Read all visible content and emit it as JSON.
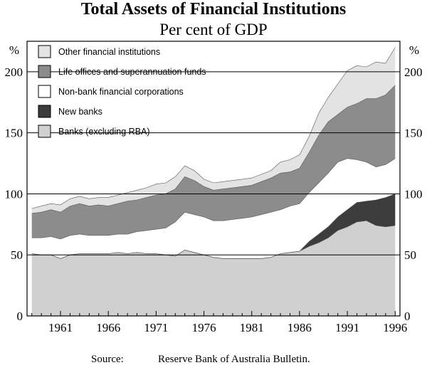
{
  "chart_data": {
    "type": "area",
    "stacked": true,
    "title": "Total Assets of Financial Institutions",
    "subtitle": "Per cent of GDP",
    "ylabel_left": "%",
    "ylabel_right": "%",
    "ylim": [
      0,
      225
    ],
    "yticks": [
      0,
      50,
      100,
      150,
      200
    ],
    "xlim": [
      1957.5,
      1996.5
    ],
    "xticks": [
      1961,
      1966,
      1971,
      1976,
      1981,
      1986,
      1991,
      1996
    ],
    "gridlines": [
      50,
      100,
      150,
      200
    ],
    "legend_position": "top-left",
    "x": [
      1958,
      1959,
      1960,
      1961,
      1962,
      1963,
      1964,
      1965,
      1966,
      1967,
      1968,
      1969,
      1970,
      1971,
      1972,
      1973,
      1974,
      1975,
      1976,
      1977,
      1978,
      1979,
      1980,
      1981,
      1982,
      1983,
      1984,
      1985,
      1986,
      1987,
      1988,
      1989,
      1990,
      1991,
      1992,
      1993,
      1994,
      1995,
      1996
    ],
    "series": [
      {
        "name": "Banks (excluding RBA)",
        "color": "#d0d0d0",
        "values": [
          51,
          50,
          50,
          47,
          50,
          51,
          51,
          51,
          51,
          52,
          51,
          52,
          51,
          51,
          50,
          49,
          54,
          52,
          50,
          48,
          47,
          47,
          47,
          47,
          47,
          48,
          51,
          52,
          53,
          57,
          60,
          64,
          70,
          73,
          77,
          78,
          74,
          73,
          74
        ]
      },
      {
        "name": "New banks",
        "color": "#3c3c3c",
        "values": [
          0,
          0,
          0,
          0,
          0,
          0,
          0,
          0,
          0,
          0,
          0,
          0,
          0,
          0,
          0,
          0,
          0,
          0,
          0,
          0,
          0,
          0,
          0,
          0,
          0,
          0,
          0,
          0,
          0,
          4,
          7,
          9,
          11,
          14,
          16,
          16,
          21,
          24,
          26
        ]
      },
      {
        "name": "Non-bank financial corporations",
        "color": "#ffffff",
        "values": [
          13,
          14,
          15,
          16,
          16,
          16,
          15,
          15,
          15,
          15,
          16,
          17,
          19,
          20,
          22,
          28,
          31,
          31,
          31,
          30,
          31,
          32,
          33,
          34,
          36,
          37,
          36,
          38,
          39,
          40,
          42,
          44,
          45,
          42,
          35,
          32,
          27,
          27,
          29
        ]
      },
      {
        "name": "Life offices and superannuation funds",
        "color": "#8c8c8c",
        "values": [
          20,
          21,
          22,
          22,
          24,
          25,
          24,
          25,
          24,
          25,
          27,
          26,
          27,
          28,
          28,
          27,
          29,
          28,
          25,
          25,
          26,
          26,
          26,
          26,
          27,
          28,
          30,
          28,
          29,
          33,
          39,
          42,
          39,
          42,
          46,
          52,
          56,
          57,
          60
        ]
      },
      {
        "name": "Other financial institutions",
        "color": "#e3e3e3",
        "values": [
          4,
          5,
          5,
          6,
          6,
          6,
          6,
          6,
          7,
          7,
          7,
          8,
          8,
          9,
          9,
          10,
          9,
          8,
          6,
          6,
          6,
          6,
          6,
          6,
          6,
          6,
          9,
          10,
          11,
          13,
          18,
          20,
          25,
          30,
          31,
          26,
          30,
          26,
          31
        ]
      }
    ],
    "source_label": "Source:",
    "source_text": "Reserve Bank of Australia Bulletin."
  }
}
